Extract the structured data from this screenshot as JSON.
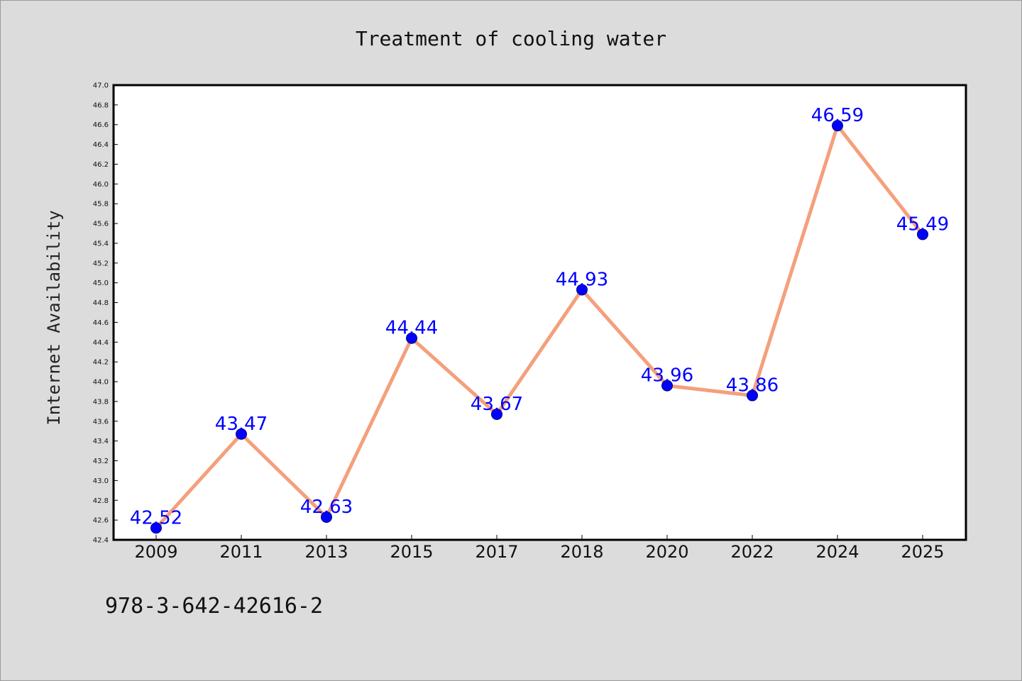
{
  "chart_data": {
    "type": "line",
    "title": "Treatment of cooling water",
    "xlabel": "",
    "ylabel": "Internet Availability",
    "categories": [
      "2009",
      "2011",
      "2013",
      "2015",
      "2017",
      "2018",
      "2020",
      "2022",
      "2024",
      "2025"
    ],
    "values": [
      42.52,
      43.47,
      42.63,
      44.44,
      43.67,
      44.93,
      43.96,
      43.86,
      46.59,
      45.49
    ],
    "data_labels": [
      "42.52",
      "43.47",
      "42.63",
      "44.44",
      "43.67",
      "44.93",
      "43.96",
      "43.86",
      "46.59",
      "45.49"
    ],
    "ylim": [
      42.4,
      47.0
    ],
    "ytick_step": 0.2,
    "grid": false,
    "legend": "none",
    "colors": {
      "line": "#f4a07c",
      "marker_fill": "#0000ff",
      "marker_edge": "#000080",
      "label": "#0000ff",
      "background": "#dcdcdc",
      "plot_background": "#ffffff"
    }
  },
  "footer": {
    "isbn": "978-3-642-42616-2"
  }
}
